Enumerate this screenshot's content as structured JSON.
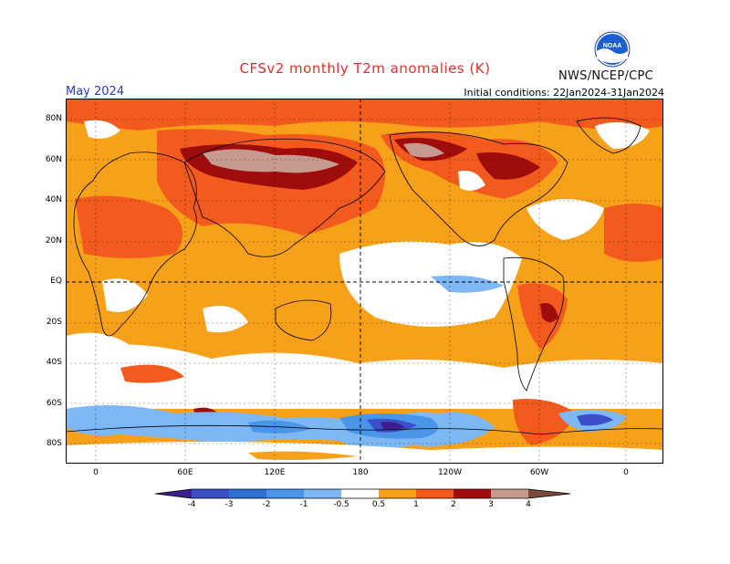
{
  "header": {
    "title": "CFSv2 monthly T2m anomalies (K)",
    "month": "May 2024",
    "init": "Initial conditions: 22Jan2024-31Jan2024",
    "org": "NWS/NCEP/CPC",
    "logo_text": "NOAA"
  },
  "map": {
    "lat_labels": [
      "80N",
      "60N",
      "40N",
      "20N",
      "EQ",
      "20S",
      "40S",
      "60S",
      "80S"
    ],
    "lon_labels": [
      "0",
      "60E",
      "120E",
      "180",
      "120W",
      "60W",
      "0"
    ]
  },
  "colorbar": {
    "labels": [
      "-4",
      "-3",
      "-2",
      "-1",
      "-0.5",
      "0.5",
      "1",
      "2",
      "3",
      "4"
    ],
    "colors": [
      "#3b1f8c",
      "#3b4fc7",
      "#2f6fd4",
      "#4b95e8",
      "#7db8f5",
      "#ffffff",
      "#f7a11a",
      "#f25a1e",
      "#d9261a",
      "#9e0c0c",
      "#c79a90",
      "#7a4a3a"
    ]
  }
}
